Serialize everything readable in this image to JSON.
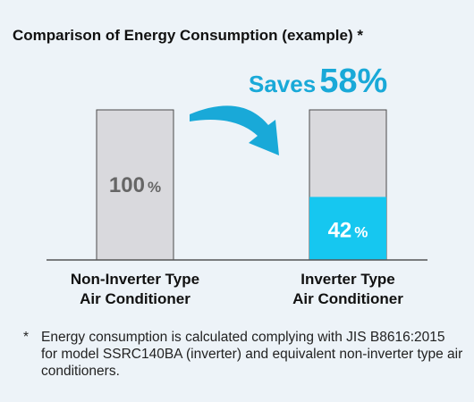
{
  "title": "Comparison of Energy Consumption (example) *",
  "savings": {
    "label": "Saves",
    "value": "58",
    "unit": "%"
  },
  "chart_data": {
    "type": "bar",
    "categories": [
      "Non-Inverter Type Air Conditioner",
      "Inverter Type Air Conditioner"
    ],
    "category_lines": [
      [
        "Non-Inverter Type",
        "Air Conditioner"
      ],
      [
        "Inverter Type",
        "Air Conditioner"
      ]
    ],
    "values": [
      100,
      42
    ],
    "data_labels": [
      "100",
      "42"
    ],
    "unit": "%",
    "ylim": [
      0,
      100
    ],
    "colors": {
      "reference_bar": "#d9d9dd",
      "inverter_consumption": "#16c7f0",
      "accent": "#19a9d8",
      "bar_border": "#4a4a4a"
    }
  },
  "footnote": {
    "mark": "*",
    "text": "Energy consumption is calculated complying with JIS B8616:2015 for model SSRC140BA (inverter) and equivalent non-inverter type air conditioners."
  }
}
